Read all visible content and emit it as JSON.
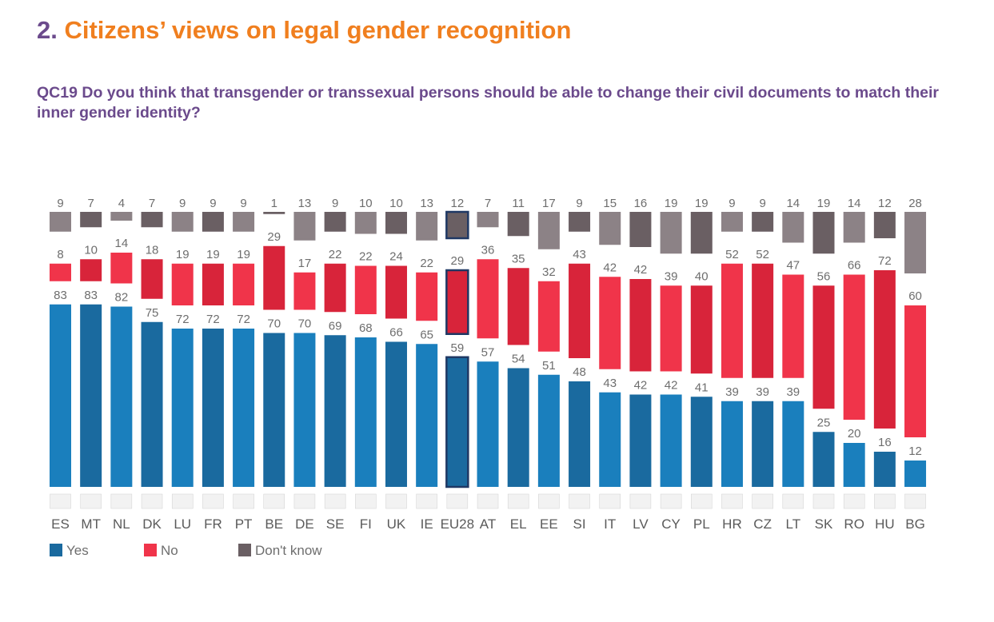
{
  "header": {
    "section_number": "2.",
    "section_title": "Citizens’ views on legal gender recognition",
    "question": "QC19 Do you think that transgender or transsexual persons should be able to change their civil documents to match their inner gender identity?"
  },
  "colors": {
    "yes": [
      "#1a7fbd",
      "#1a6a9f"
    ],
    "no": [
      "#f0344a",
      "#d8243a"
    ],
    "dont_know": [
      "#8c8286",
      "#6a5f63"
    ],
    "highlight_outline": "#1f3864"
  },
  "chart_data": {
    "type": "bar",
    "stacked": true,
    "categories": [
      "ES",
      "MT",
      "NL",
      "DK",
      "LU",
      "FR",
      "PT",
      "BE",
      "DE",
      "SE",
      "FI",
      "UK",
      "IE",
      "EU28",
      "AT",
      "EL",
      "EE",
      "SI",
      "IT",
      "LV",
      "CY",
      "PL",
      "HR",
      "CZ",
      "LT",
      "SK",
      "RO",
      "HU",
      "BG"
    ],
    "highlight_category": "EU28",
    "series": [
      {
        "name": "Yes",
        "values": [
          83,
          83,
          82,
          75,
          72,
          72,
          72,
          70,
          70,
          69,
          68,
          66,
          65,
          59,
          57,
          54,
          51,
          48,
          43,
          42,
          42,
          41,
          39,
          39,
          39,
          25,
          20,
          16,
          12
        ]
      },
      {
        "name": "No",
        "values": [
          8,
          10,
          14,
          18,
          19,
          19,
          19,
          29,
          17,
          22,
          22,
          24,
          22,
          29,
          36,
          35,
          32,
          43,
          42,
          42,
          39,
          40,
          52,
          52,
          47,
          56,
          66,
          72,
          60
        ]
      },
      {
        "name": "Don't know",
        "values": [
          9,
          7,
          4,
          7,
          9,
          9,
          9,
          1,
          13,
          9,
          10,
          10,
          13,
          12,
          7,
          11,
          17,
          9,
          15,
          16,
          19,
          19,
          9,
          9,
          14,
          19,
          14,
          12,
          28
        ]
      }
    ],
    "legend": [
      "Yes",
      "No",
      "Don't know"
    ],
    "legend_position": "bottom-left",
    "flag_icons": [
      "spain-flag-icon",
      "malta-flag-icon",
      "netherlands-flag-icon",
      "denmark-flag-icon",
      "luxembourg-flag-icon",
      "france-flag-icon",
      "portugal-flag-icon",
      "belgium-flag-icon",
      "germany-flag-icon",
      "sweden-flag-icon",
      "finland-flag-icon",
      "uk-flag-icon",
      "ireland-flag-icon",
      "eu-flag-icon",
      "austria-flag-icon",
      "greece-flag-icon",
      "estonia-flag-icon",
      "slovenia-flag-icon",
      "italy-flag-icon",
      "latvia-flag-icon",
      "cyprus-flag-icon",
      "poland-flag-icon",
      "croatia-flag-icon",
      "czechia-flag-icon",
      "lithuania-flag-icon",
      "slovakia-flag-icon",
      "romania-flag-icon",
      "hungary-flag-icon",
      "bulgaria-flag-icon"
    ],
    "grid": false
  }
}
